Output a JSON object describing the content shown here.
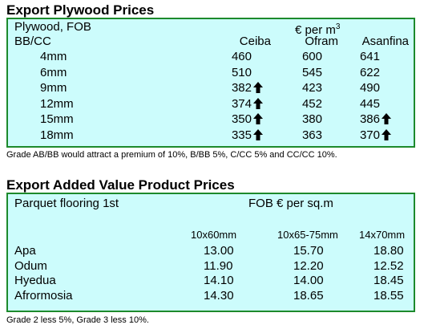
{
  "plywood": {
    "title": "Export Plywood Prices",
    "header_left": "Plywood, FOB",
    "currency_label": "€ per m",
    "currency_sup": "3",
    "grade_label": "BB/CC",
    "columns": [
      "Ceiba",
      "Ofram",
      "Asanfina"
    ],
    "rows": [
      {
        "size": "4mm",
        "values": [
          "460",
          "600",
          "641"
        ],
        "up": [
          false,
          false,
          false
        ]
      },
      {
        "size": "6mm",
        "values": [
          "510",
          "545",
          "622"
        ],
        "up": [
          false,
          false,
          false
        ]
      },
      {
        "size": "9mm",
        "values": [
          "382",
          "423",
          "490"
        ],
        "up": [
          true,
          false,
          false
        ]
      },
      {
        "size": "12mm",
        "values": [
          "374",
          "452",
          "445"
        ],
        "up": [
          true,
          false,
          false
        ]
      },
      {
        "size": "15mm",
        "values": [
          "350",
          "380",
          "386"
        ],
        "up": [
          true,
          false,
          true
        ]
      },
      {
        "size": "18mm",
        "values": [
          "335",
          "363",
          "370"
        ],
        "up": [
          true,
          false,
          true
        ]
      }
    ],
    "note": "Grade AB/BB would attract a premium of 10%, B/BB 5%, C/CC 5% and CC/CC 10%.",
    "up_icon": "arrow-up-icon"
  },
  "added_value": {
    "title": "Export Added Value Product Prices",
    "header_left": "Parquet flooring 1st",
    "header_right": "FOB € per sq.m",
    "columns": [
      "10x60mm",
      "10x65-75mm",
      "14x70mm"
    ],
    "rows": [
      {
        "species": "Apa",
        "values": [
          "13.00",
          "15.70",
          "18.80"
        ]
      },
      {
        "species": "Odum",
        "values": [
          "11.90",
          "12.20",
          "12.52"
        ]
      },
      {
        "species": "Hyedua",
        "values": [
          "14.10",
          "14.00",
          "18.45"
        ]
      },
      {
        "species": "Afrormosia",
        "values": [
          "14.30",
          "18.65",
          "18.55"
        ]
      }
    ],
    "note": "Grade 2 less 5%, Grade 3 less 10%."
  },
  "colors": {
    "panel_bg": "#ccfcfc",
    "panel_border": "#1d8a2c"
  }
}
